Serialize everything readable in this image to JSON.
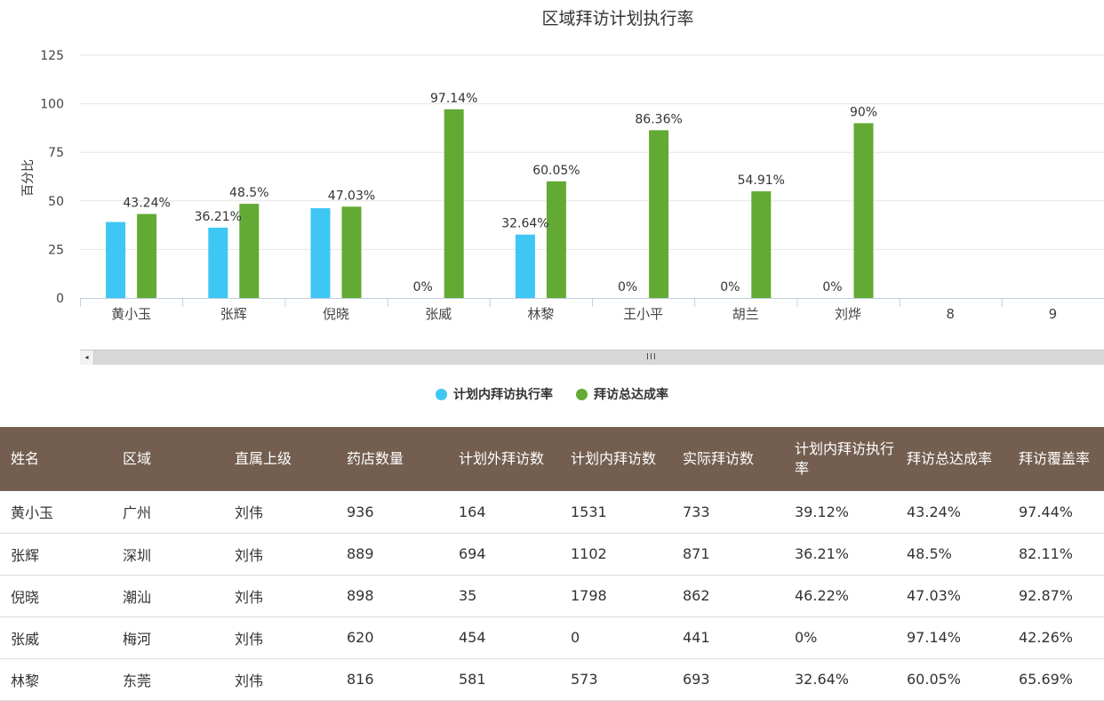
{
  "chart_data": {
    "type": "bar",
    "title": "区域拜访计划执行率",
    "ylabel": "百分比",
    "xlabel": "",
    "ylim": [
      0,
      125
    ],
    "yticks": [
      0,
      25,
      50,
      75,
      100,
      125
    ],
    "grid": true,
    "legend_position": "bottom-center",
    "categories": [
      "黄小玉",
      "张辉",
      "倪晓",
      "张威",
      "林黎",
      "王小平",
      "胡兰",
      "刘烨",
      "8",
      "9"
    ],
    "series": [
      {
        "name": "计划内拜访执行率",
        "color": "#3ec6f5",
        "values": [
          39.12,
          36.21,
          46.22,
          0,
          32.64,
          0,
          0,
          0,
          null,
          null
        ],
        "labels": [
          "",
          "36.21%",
          "",
          "0%",
          "32.64%",
          "0%",
          "0%",
          "0%",
          "",
          ""
        ]
      },
      {
        "name": "拜访总达成率",
        "color": "#63aa34",
        "values": [
          43.24,
          48.5,
          47.03,
          97.14,
          60.05,
          86.36,
          54.91,
          90,
          null,
          null
        ],
        "labels": [
          "43.24%",
          "48.5%",
          "47.03%",
          "97.14%",
          "60.05%",
          "86.36%",
          "54.91%",
          "90%",
          "",
          ""
        ]
      }
    ]
  },
  "scrollbar": {
    "left_arrow": "◂",
    "grip": "III"
  },
  "table": {
    "headers": [
      "姓名",
      "区域",
      "直属上级",
      "药店数量",
      "计划外拜访数",
      "计划内拜访数",
      "实际拜访数",
      "计划内拜访执行率",
      "拜访总达成率",
      "拜访覆盖率"
    ],
    "rows": [
      [
        "黄小玉",
        "广州",
        "刘伟",
        "936",
        "164",
        "1531",
        "733",
        "39.12%",
        "43.24%",
        "97.44%"
      ],
      [
        "张辉",
        "深圳",
        "刘伟",
        "889",
        "694",
        "1102",
        "871",
        "36.21%",
        "48.5%",
        "82.11%"
      ],
      [
        "倪晓",
        "潮汕",
        "刘伟",
        "898",
        "35",
        "1798",
        "862",
        "46.22%",
        "47.03%",
        "92.87%"
      ],
      [
        "张威",
        "梅河",
        "刘伟",
        "620",
        "454",
        "0",
        "441",
        "0%",
        "97.14%",
        "42.26%"
      ],
      [
        "林黎",
        "东莞",
        "刘伟",
        "816",
        "581",
        "573",
        "693",
        "32.64%",
        "60.05%",
        "65.69%"
      ]
    ]
  }
}
